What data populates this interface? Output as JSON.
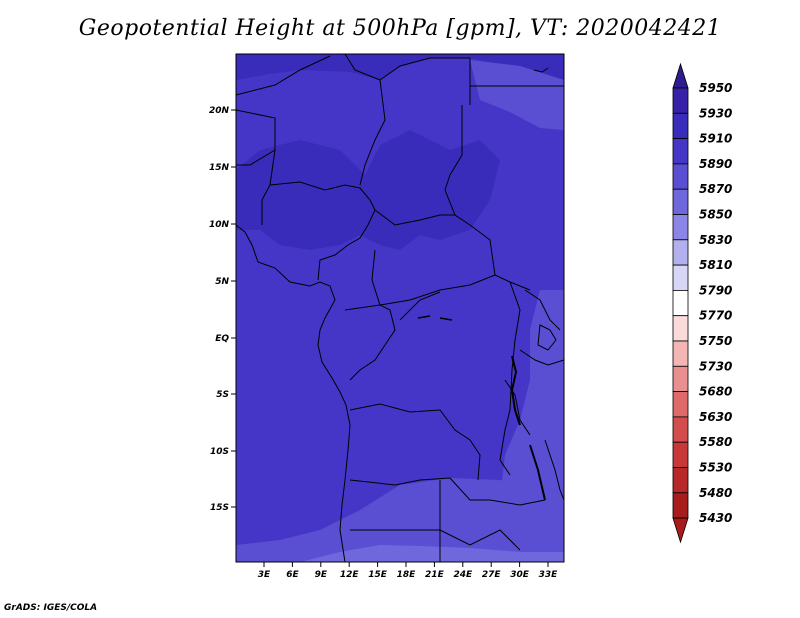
{
  "title": "Geopotential Height at 500hPa [gpm], VT: 2020042421",
  "footer": "GrADS: IGES/COLA",
  "map": {
    "lat_ticks": [
      "20N",
      "15N",
      "10N",
      "5N",
      "EQ",
      "5S",
      "10S",
      "15S"
    ],
    "lon_ticks": [
      "3E",
      "6E",
      "9E",
      "12E",
      "15E",
      "18E",
      "21E",
      "24E",
      "27E",
      "30E",
      "33E"
    ]
  },
  "colorbar": {
    "levels": [
      "5950",
      "5930",
      "5910",
      "5890",
      "5870",
      "5850",
      "5830",
      "5810",
      "5790",
      "5770",
      "5750",
      "5730",
      "5680",
      "5630",
      "5580",
      "5530",
      "5480",
      "5430"
    ],
    "colors": [
      "#2e1d8e",
      "#3621a8",
      "#3a2cba",
      "#4636c8",
      "#5a4fd3",
      "#6f68dd",
      "#8a85e6",
      "#b3b0ee",
      "#d8d6f6",
      "#ffffff",
      "#fbdada",
      "#f4b5b5",
      "#ea8f8f",
      "#de6a6a",
      "#d44d4d",
      "#c93838",
      "#b82828",
      "#a81c1c"
    ],
    "top_arrow_color": "#2e1d8e",
    "bottom_arrow_color": "#a81c1c"
  },
  "field_colors": {
    "c5910": "#3a2cba",
    "c5890": "#4636c8",
    "c5870": "#5a4fd3",
    "c5850": "#6f68dd"
  }
}
